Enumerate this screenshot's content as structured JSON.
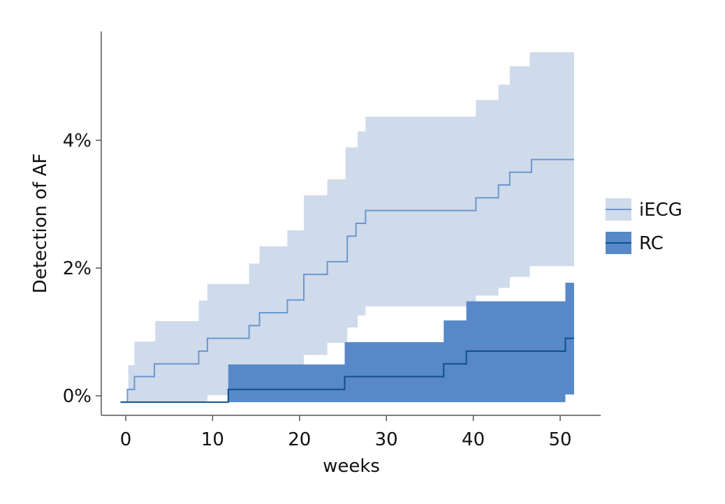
{
  "chart_data": {
    "type": "line",
    "subtype": "step-with-confidence-band",
    "xlabel": "weeks",
    "ylabel": "Detection of AF",
    "xlim": [
      -2.8,
      54.7
    ],
    "ylim": [
      -0.31,
      5.7
    ],
    "xticks": [
      0,
      10,
      20,
      30,
      40,
      50
    ],
    "xtick_labels": [
      "0",
      "10",
      "20",
      "30",
      "40",
      "50"
    ],
    "yticks": [
      0,
      2,
      4
    ],
    "ytick_labels": [
      "0%",
      "2%",
      "4%"
    ],
    "grid": false,
    "legend_position": "right",
    "x_end": 51.6,
    "series": [
      {
        "name": "iECG",
        "band_color": "#cfdaeb",
        "line_color": "#6c96d0",
        "estimate": [
          [
            -0.6,
            -0.1
          ],
          [
            0.2,
            0.1
          ],
          [
            1,
            0.3
          ],
          [
            3.3,
            0.5
          ],
          [
            8.4,
            0.7
          ],
          [
            9.4,
            0.9
          ],
          [
            14.2,
            1.1
          ],
          [
            15.4,
            1.3
          ],
          [
            18.6,
            1.5
          ],
          [
            20.5,
            1.9
          ],
          [
            23.2,
            2.1
          ],
          [
            25.5,
            2.5
          ],
          [
            26.5,
            2.7
          ],
          [
            27.6,
            2.9
          ],
          [
            40.3,
            3.1
          ],
          [
            42.9,
            3.3
          ],
          [
            44.2,
            3.5
          ],
          [
            46.7,
            3.7
          ]
        ],
        "upper": [
          [
            0.3,
            0.48
          ],
          [
            1,
            0.85
          ],
          [
            3.4,
            1.17
          ],
          [
            8.4,
            1.49
          ],
          [
            9.4,
            1.75
          ],
          [
            14.2,
            2.07
          ],
          [
            15.4,
            2.34
          ],
          [
            18.6,
            2.59
          ],
          [
            20.5,
            3.14
          ],
          [
            23.2,
            3.39
          ],
          [
            25.3,
            3.89
          ],
          [
            26.7,
            4.14
          ],
          [
            27.6,
            4.37
          ],
          [
            40.3,
            4.63
          ],
          [
            42.9,
            4.87
          ],
          [
            44.2,
            5.16
          ],
          [
            46.5,
            5.38
          ]
        ],
        "lower": [
          [
            0.3,
            -0.1
          ],
          [
            9.4,
            0.01
          ],
          [
            20.5,
            0.64
          ],
          [
            23.2,
            0.83
          ],
          [
            25.5,
            1.07
          ],
          [
            26.7,
            1.26
          ],
          [
            27.6,
            1.4
          ],
          [
            40.3,
            1.57
          ],
          [
            42.9,
            1.69
          ],
          [
            44.2,
            1.86
          ],
          [
            46.5,
            2.03
          ]
        ]
      },
      {
        "name": "RC",
        "band_color": "#5888c8",
        "line_color": "#0f4f8f",
        "estimate": [
          [
            -0.6,
            -0.1
          ],
          [
            11.8,
            0.1
          ],
          [
            25.2,
            0.3
          ],
          [
            36.6,
            0.5
          ],
          [
            39.2,
            0.7
          ],
          [
            50.6,
            0.9
          ]
        ],
        "upper": [
          [
            11.8,
            0.49
          ],
          [
            25.2,
            0.84
          ],
          [
            36.6,
            1.18
          ],
          [
            39.2,
            1.48
          ],
          [
            50.6,
            1.77
          ]
        ],
        "lower": [
          [
            11.8,
            -0.1
          ],
          [
            50.6,
            0.02
          ]
        ]
      }
    ]
  }
}
